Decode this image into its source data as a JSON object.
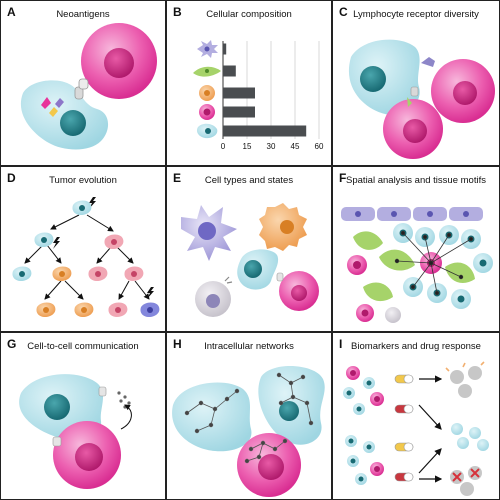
{
  "panels": [
    {
      "letter": "A",
      "title": "Neoantigens"
    },
    {
      "letter": "B",
      "title": "Cellular composition"
    },
    {
      "letter": "C",
      "title": "Lymphocyte receptor diversity"
    },
    {
      "letter": "D",
      "title": "Tumor evolution"
    },
    {
      "letter": "E",
      "title": "Cell types and states"
    },
    {
      "letter": "F",
      "title": "Spatial analysis and tissue motifs"
    },
    {
      "letter": "G",
      "title": "Cell-to-cell communication"
    },
    {
      "letter": "H",
      "title": "Intracellular networks"
    },
    {
      "letter": "I",
      "title": "Biomarkers and drug response"
    }
  ],
  "chart_data": {
    "type": "bar",
    "orientation": "horizontal",
    "categories": [
      "dendritic cell",
      "fibroblast",
      "macrophage",
      "T cell",
      "tumor cell"
    ],
    "values": [
      2,
      8,
      20,
      20,
      52
    ],
    "xticks": [
      "0",
      "15",
      "30",
      "45",
      "60"
    ],
    "xlim": [
      0,
      60
    ],
    "grid": true,
    "colors": {
      "bar": "#4a4d50"
    }
  },
  "colors": {
    "tumor_cell": "#a9dbe6",
    "t_cell": "#e8339a",
    "macrophage": "#f2b071",
    "dendritic_cell": "#b3aee0",
    "fibroblast": "#a6d36a",
    "mutant_red": "#e9738a",
    "mutant_blue": "#6b6ed1"
  }
}
